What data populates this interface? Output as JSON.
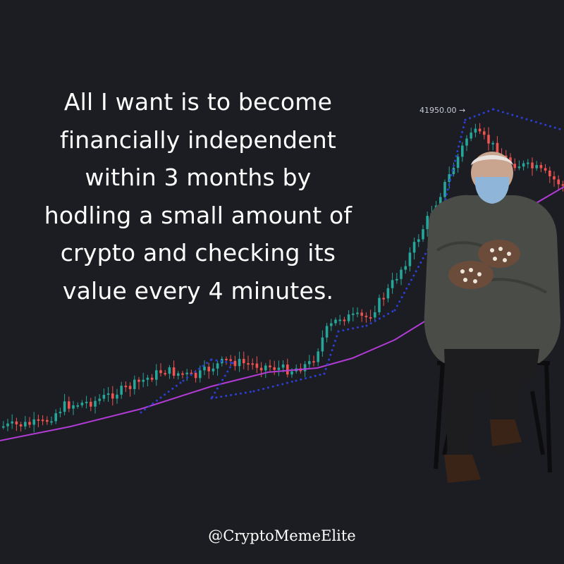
{
  "meme": {
    "caption_lines": [
      "All I want is to become",
      "financially independent",
      "within 3 months by",
      "hodling a small amount of",
      "crypto and checking its",
      "value every 4 minutes."
    ],
    "watermark": "@CryptoMemeElite"
  },
  "chart": {
    "price_label": "41950.00 →"
  },
  "colors": {
    "background": "#1c1d22",
    "up_candle": "#26a69a",
    "down_candle": "#ef5350",
    "moving_average": "#b23bd6",
    "dotted_indicator": "#2b3fd6"
  },
  "figure": {
    "description_icon": "seated-person-in-mittens"
  }
}
